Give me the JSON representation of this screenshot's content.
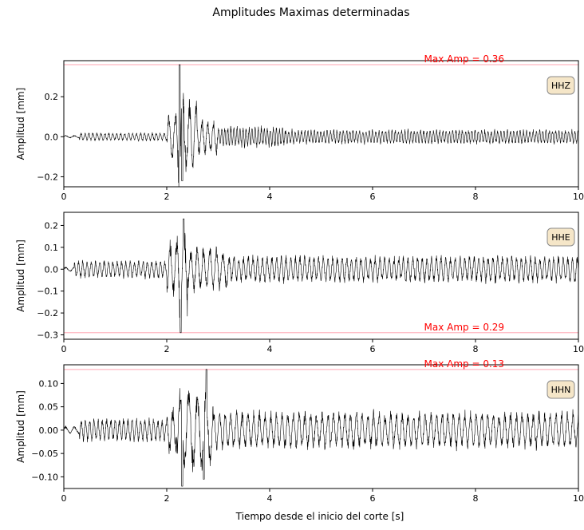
{
  "figure": {
    "title": "Amplitudes Maximas determinadas",
    "xlabel": "Tiempo desde el inicio del corte [s]"
  },
  "chart_data": [
    {
      "type": "line",
      "channel": "HHZ",
      "ylabel": "Amplitud [mm]",
      "xlim": [
        0,
        10
      ],
      "ylim": [
        -0.25,
        0.38
      ],
      "xticks": [
        0,
        2,
        4,
        6,
        8,
        10
      ],
      "yticks": [
        -0.2,
        0.0,
        0.2
      ],
      "ytick_labels": [
        "−0.2",
        "0.0",
        "0.2"
      ],
      "max_amp": 0.36,
      "max_amp_label": "Max Amp = 0.36",
      "max_amp_color": "#ff0000",
      "max_line_color": "#ffb6c1",
      "trace_color": "#000000",
      "segments": [
        {
          "t0": 0.0,
          "t1": 0.3,
          "amp": 0.006,
          "freq": 6
        },
        {
          "t0": 0.3,
          "t1": 2.0,
          "amp": 0.02,
          "freq": 13
        },
        {
          "t0": 2.0,
          "t1": 2.2,
          "amp": 0.12,
          "freq": 8
        },
        {
          "t0": 2.2,
          "t1": 2.35,
          "amp": 0.3,
          "freq": 7
        },
        {
          "t0": 2.35,
          "t1": 2.6,
          "amp": 0.18,
          "freq": 8
        },
        {
          "t0": 2.6,
          "t1": 3.0,
          "amp": 0.09,
          "freq": 9
        },
        {
          "t0": 3.0,
          "t1": 4.3,
          "amp": 0.05,
          "freq": 17
        },
        {
          "t0": 4.3,
          "t1": 10.0,
          "amp": 0.035,
          "freq": 16
        }
      ],
      "peaks": [
        {
          "t": 2.25,
          "v": 0.36
        },
        {
          "t": 2.3,
          "v": -0.22
        }
      ]
    },
    {
      "type": "line",
      "channel": "HHE",
      "ylabel": "Amplitud [mm]",
      "xlim": [
        0,
        10
      ],
      "ylim": [
        -0.32,
        0.26
      ],
      "xticks": [
        0,
        2,
        4,
        6,
        8,
        10
      ],
      "yticks": [
        -0.3,
        -0.2,
        -0.1,
        0.0,
        0.1,
        0.2
      ],
      "ytick_labels": [
        "−0.3",
        "−0.2",
        "−0.1",
        "0.0",
        "0.1",
        "0.2"
      ],
      "max_amp": -0.29,
      "max_amp_label": "Max Amp = 0.29",
      "max_amp_color": "#ff0000",
      "max_line_color": "#ffb6c1",
      "trace_color": "#000000",
      "segments": [
        {
          "t0": 0.0,
          "t1": 0.2,
          "amp": 0.01,
          "freq": 6
        },
        {
          "t0": 0.2,
          "t1": 2.0,
          "amp": 0.04,
          "freq": 12
        },
        {
          "t0": 2.0,
          "t1": 2.2,
          "amp": 0.12,
          "freq": 8
        },
        {
          "t0": 2.2,
          "t1": 2.4,
          "amp": 0.22,
          "freq": 7
        },
        {
          "t0": 2.4,
          "t1": 3.2,
          "amp": 0.1,
          "freq": 8
        },
        {
          "t0": 3.2,
          "t1": 10.0,
          "amp": 0.06,
          "freq": 11
        }
      ],
      "peaks": [
        {
          "t": 2.27,
          "v": -0.29
        },
        {
          "t": 2.33,
          "v": 0.23
        }
      ]
    },
    {
      "type": "line",
      "channel": "HHN",
      "ylabel": "Amplitud [mm]",
      "xlim": [
        0,
        10
      ],
      "ylim": [
        -0.125,
        0.14
      ],
      "xticks": [
        0,
        2,
        4,
        6,
        8,
        10
      ],
      "yticks": [
        -0.1,
        -0.05,
        0.0,
        0.05,
        0.1
      ],
      "ytick_labels": [
        "−0.10",
        "−0.05",
        "0.00",
        "0.05",
        "0.10"
      ],
      "max_amp": 0.13,
      "max_amp_label": "Max Amp = 0.13",
      "max_amp_color": "#ff0000",
      "max_line_color": "#ffb6c1",
      "trace_color": "#000000",
      "segments": [
        {
          "t0": 0.0,
          "t1": 0.3,
          "amp": 0.008,
          "freq": 6
        },
        {
          "t0": 0.3,
          "t1": 2.0,
          "amp": 0.025,
          "freq": 12
        },
        {
          "t0": 2.0,
          "t1": 2.2,
          "amp": 0.05,
          "freq": 8
        },
        {
          "t0": 2.2,
          "t1": 2.9,
          "amp": 0.09,
          "freq": 6
        },
        {
          "t0": 2.9,
          "t1": 10.0,
          "amp": 0.04,
          "freq": 9
        }
      ],
      "peaks": [
        {
          "t": 2.3,
          "v": -0.12
        },
        {
          "t": 2.77,
          "v": 0.13
        },
        {
          "t": 2.72,
          "v": -0.105
        }
      ]
    }
  ]
}
